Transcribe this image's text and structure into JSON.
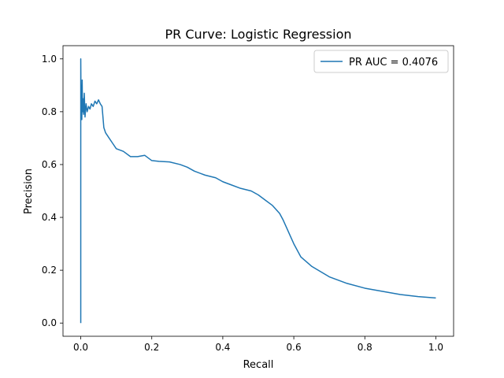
{
  "chart_data": {
    "type": "line",
    "title": "PR Curve: Logistic Regression",
    "xlabel": "Recall",
    "ylabel": "Precision",
    "xlim": [
      -0.05,
      1.05
    ],
    "ylim": [
      -0.05,
      1.05
    ],
    "xticks": [
      0.0,
      0.2,
      0.4,
      0.6,
      0.8,
      1.0
    ],
    "xtick_labels": [
      "0.0",
      "0.2",
      "0.4",
      "0.6",
      "0.8",
      "1.0"
    ],
    "yticks": [
      0.0,
      0.2,
      0.4,
      0.6,
      0.8,
      1.0
    ],
    "ytick_labels": [
      "0.0",
      "0.2",
      "0.4",
      "0.6",
      "0.8",
      "1.0"
    ],
    "grid": false,
    "legend_position": "top-right",
    "series": [
      {
        "name": "PR AUC = 0.4076",
        "color": "#1f77b4",
        "x": [
          0.0,
          0.0,
          0.001,
          0.002,
          0.003,
          0.004,
          0.005,
          0.006,
          0.008,
          0.01,
          0.012,
          0.015,
          0.018,
          0.022,
          0.026,
          0.03,
          0.035,
          0.04,
          0.045,
          0.05,
          0.055,
          0.06,
          0.065,
          0.07,
          0.08,
          0.09,
          0.1,
          0.12,
          0.14,
          0.16,
          0.18,
          0.2,
          0.22,
          0.25,
          0.28,
          0.3,
          0.32,
          0.35,
          0.38,
          0.4,
          0.42,
          0.45,
          0.48,
          0.5,
          0.52,
          0.54,
          0.55,
          0.56,
          0.57,
          0.58,
          0.59,
          0.6,
          0.62,
          0.65,
          0.7,
          0.75,
          0.8,
          0.85,
          0.9,
          0.95,
          1.0
        ],
        "y": [
          0.0,
          1.0,
          0.78,
          0.9,
          0.77,
          0.92,
          0.8,
          0.85,
          0.79,
          0.87,
          0.78,
          0.83,
          0.8,
          0.82,
          0.81,
          0.83,
          0.82,
          0.84,
          0.83,
          0.845,
          0.83,
          0.82,
          0.74,
          0.72,
          0.7,
          0.68,
          0.66,
          0.65,
          0.63,
          0.63,
          0.635,
          0.615,
          0.612,
          0.61,
          0.6,
          0.59,
          0.575,
          0.56,
          0.55,
          0.535,
          0.525,
          0.51,
          0.5,
          0.485,
          0.465,
          0.445,
          0.43,
          0.415,
          0.39,
          0.36,
          0.33,
          0.3,
          0.25,
          0.215,
          0.175,
          0.15,
          0.132,
          0.12,
          0.108,
          0.1,
          0.095
        ]
      }
    ]
  }
}
